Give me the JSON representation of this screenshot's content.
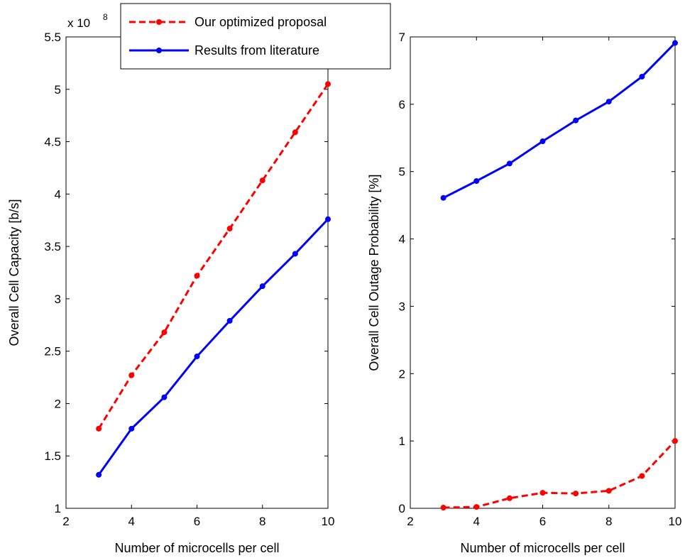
{
  "chart_data": [
    {
      "type": "line",
      "xlabel": "Number of microcells per cell",
      "ylabel": "Overall Cell Capacity [b/s]",
      "y_multiplier_label": "x 10",
      "y_multiplier_exponent": "8",
      "xlim": [
        2,
        10
      ],
      "ylim": [
        1,
        5.5
      ],
      "xticks": [
        "2",
        "4",
        "6",
        "8",
        "10"
      ],
      "yticks": [
        "1",
        "1.5",
        "2",
        "2.5",
        "3",
        "3.5",
        "4",
        "4.5",
        "5",
        "5.5"
      ],
      "x": [
        3,
        4,
        5,
        6,
        7,
        8,
        9,
        10
      ],
      "series": [
        {
          "name": "Our optimized proposal",
          "color": "#ff0000",
          "dash": true,
          "values": [
            1.76,
            2.27,
            2.68,
            3.22,
            3.67,
            4.13,
            4.59,
            5.05
          ]
        },
        {
          "name": "Results from literature",
          "color": "#0000ff",
          "dash": false,
          "values": [
            1.32,
            1.76,
            2.06,
            2.45,
            2.79,
            3.12,
            3.43,
            3.76
          ]
        }
      ],
      "legend": {
        "placement": "top-center",
        "entries": [
          "Our optimized proposal",
          "Results from literature"
        ]
      }
    },
    {
      "type": "line",
      "xlabel": "Number of microcells per cell",
      "ylabel": "Overall Cell Outage Probability [%]",
      "xlim": [
        2,
        10
      ],
      "ylim": [
        0,
        7
      ],
      "xticks": [
        "2",
        "4",
        "6",
        "8",
        "10"
      ],
      "yticks": [
        "0",
        "1",
        "2",
        "3",
        "4",
        "5",
        "6",
        "7"
      ],
      "x": [
        3,
        4,
        5,
        6,
        7,
        8,
        9,
        10
      ],
      "series": [
        {
          "name": "Results from literature",
          "color": "#0000ff",
          "dash": false,
          "values": [
            4.61,
            4.86,
            5.12,
            5.45,
            5.76,
            6.04,
            6.41,
            6.91
          ]
        },
        {
          "name": "Our optimized proposal",
          "color": "#ff0000",
          "dash": true,
          "values": [
            0.01,
            0.02,
            0.15,
            0.23,
            0.22,
            0.26,
            0.48,
            1.0
          ]
        }
      ]
    }
  ]
}
